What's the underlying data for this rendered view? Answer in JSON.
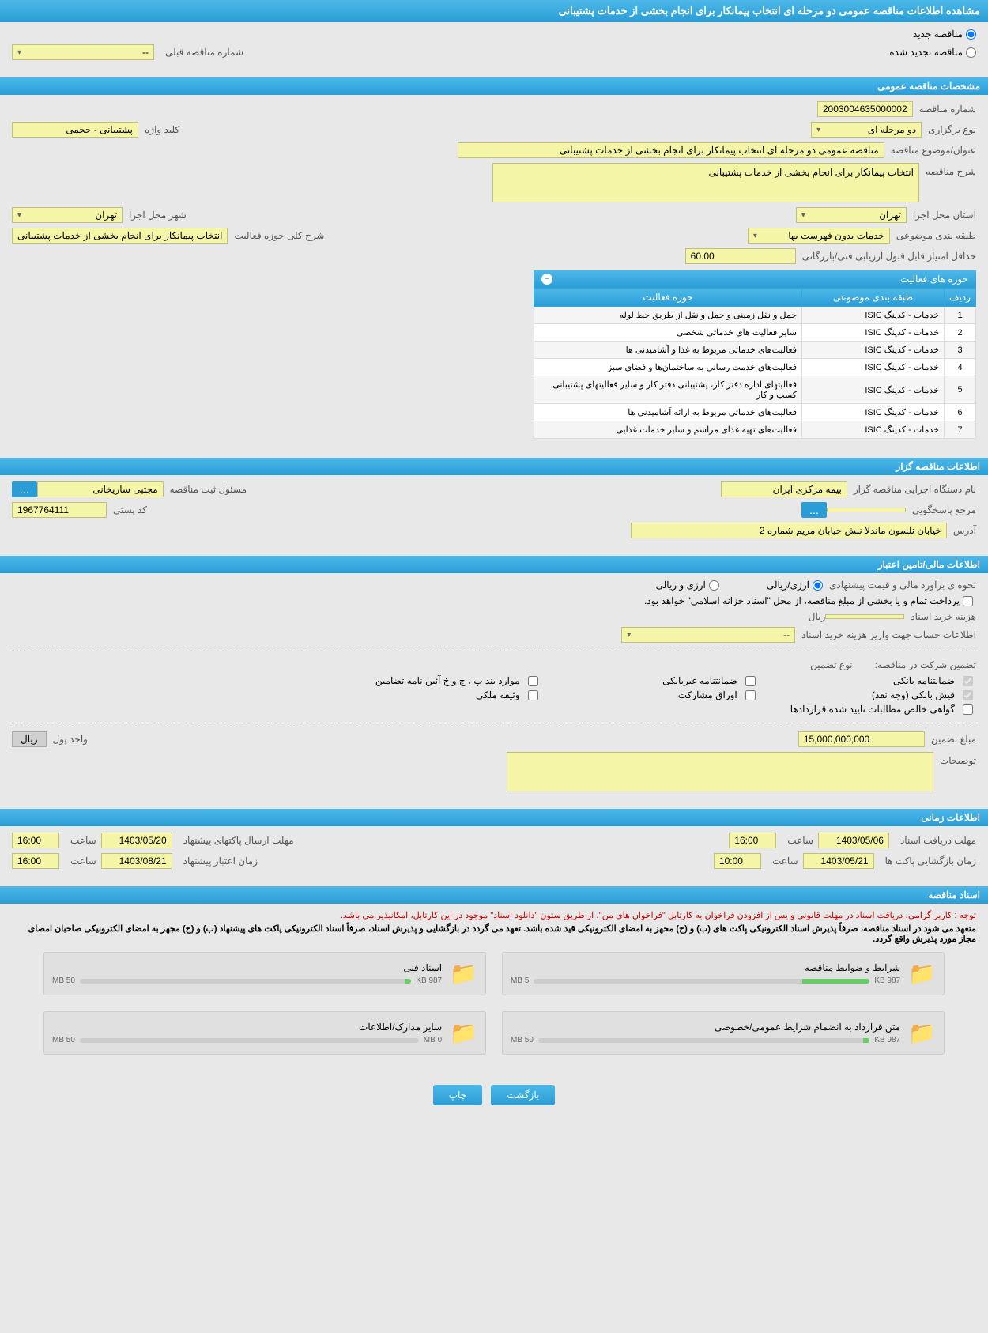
{
  "main_title": "مشاهده اطلاعات مناقصه عمومی دو مرحله ای انتخاب پیمانکار برای انجام بخشی از خدمات پشتیبانی",
  "top_radio": {
    "new_label": "مناقصه جدید",
    "renewed_label": "مناقصه تجدید شده",
    "prev_number_label": "شماره مناقصه قبلی",
    "prev_number_value": "--"
  },
  "sections": {
    "general": "مشخصات مناقصه عمومی",
    "organizer": "اطلاعات مناقصه گزار",
    "financial": "اطلاعات مالی/تامین اعتبار",
    "timing": "اطلاعات زمانی",
    "docs": "اسناد مناقصه"
  },
  "general": {
    "number_label": "شماره مناقصه",
    "number_value": "2003004635000002",
    "type_label": "نوع برگزاری",
    "type_value": "دو مرحله ای",
    "keyword_label": "کلید واژه",
    "keyword_value": "پشتیبانی - حجمی",
    "subject_label": "عنوان/موضوع مناقصه",
    "subject_value": "مناقصه عمومی دو مرحله ای انتخاب پیمانکار  برای   انجام بخشی از خدمات پشتیبانی",
    "desc_label": "شرح مناقصه",
    "desc_value": "انتخاب پیمانکار  برای   انجام بخشی از خدمات پشتیبانی",
    "province_label": "استان محل اجرا",
    "province_value": "تهران",
    "city_label": "شهر محل اجرا",
    "city_value": "تهران",
    "category_label": "طبقه بندی موضوعی",
    "category_value": "خدمات بدون فهرست بها",
    "scope_label": "شرح کلی حوزه فعالیت",
    "scope_value": "انتخاب پیمانکار  برای   انجام بخشی از خدمات پشتیبانی",
    "min_score_label": "حداقل امتیاز قابل قبول ارزیابی فنی/بازرگانی",
    "min_score_value": "60.00"
  },
  "activity_table": {
    "title": "حوزه های فعالیت",
    "col_row": "ردیف",
    "col_category": "طبقه بندی موضوعی",
    "col_activity": "حوزه فعالیت",
    "rows": [
      {
        "n": "1",
        "cat": "خدمات - کدینگ ISIC",
        "act": "حمل و نقل زمینی و حمل و نقل از طریق خط  لوله"
      },
      {
        "n": "2",
        "cat": "خدمات - کدینگ ISIC",
        "act": "سایر فعالیت های خدماتی شخصی"
      },
      {
        "n": "3",
        "cat": "خدمات - کدینگ ISIC",
        "act": "فعالیت‌های خدماتی مربوط به غذا و آشامیدنی ها"
      },
      {
        "n": "4",
        "cat": "خدمات - کدینگ ISIC",
        "act": "فعالیت‌های خدمت رسانی به ساختمان‌ها و فضای سبز"
      },
      {
        "n": "5",
        "cat": "خدمات - کدینگ ISIC",
        "act": "فعالیتهای  اداره دفتر کار، پشتیبانی دفتر کار و سایر فعالیتهای پشتیبانی کسب و کار"
      },
      {
        "n": "6",
        "cat": "خدمات - کدینگ ISIC",
        "act": "فعالیت‌های خدماتی مربوط به ارائه آشامیدنی ها"
      },
      {
        "n": "7",
        "cat": "خدمات - کدینگ ISIC",
        "act": "فعالیت‌های تهیه غذای مراسم و سایر خدمات غذایی"
      }
    ]
  },
  "organizer": {
    "agency_label": "نام دستگاه اجرایی مناقصه گزار",
    "agency_value": "بیمه مرکزی ایران",
    "responsible_label": "مسئول ثبت مناقصه",
    "responsible_value": "مجتبی ساریخانی",
    "answerer_label": "مرجع پاسخگویی",
    "answerer_value": "",
    "postal_label": "کد پستی",
    "postal_value": "1967764111",
    "address_label": "آدرس",
    "address_value": "خیابان نلسون ماندلا نبش خیابان مریم شماره 2"
  },
  "financial": {
    "method_label": "نحوه ی برآورد مالی و قیمت پیشنهادی",
    "rial_label": "ارزی/ریالی",
    "currency_label": "ارزی و ریالی",
    "payment_note": "پرداخت تمام و یا بخشی از مبلغ مناقصه، از محل \"اسناد خزانه اسلامی\" خواهد بود.",
    "purchase_cost_label": "هزینه خرید اسناد",
    "purchase_cost_unit": "ریال",
    "account_label": "اطلاعات حساب جهت واریز هزینه خرید اسناد",
    "account_value": "--",
    "guarantee_title": "تضمین شرکت در مناقصه:",
    "guarantee_type_label": "نوع تضمین",
    "gt_bank": "ضمانتنامه بانکی",
    "gt_nonbank": "ضمانتنامه غیربانکی",
    "gt_items": "موارد بند پ ، ج و خ آئین نامه تضامین",
    "gt_cash": "فیش بانکی (وجه نقد)",
    "gt_securities": "اوراق مشارکت",
    "gt_property": "وثیقه ملکی",
    "gt_receivables": "گواهی خالص مطالبات تایید شده قراردادها",
    "amount_label": "مبلغ تضمین",
    "amount_value": "15,000,000,000",
    "unit_label": "واحد پول",
    "unit_value": "ریال",
    "notes_label": "توضیحات"
  },
  "timing": {
    "receive_label": "مهلت دریافت اسناد",
    "receive_date": "1403/05/06",
    "time_label": "ساعت",
    "receive_time": "16:00",
    "send_label": "مهلت ارسال پاکتهای پیشنهاد",
    "send_date": "1403/05/20",
    "send_time": "16:00",
    "open_label": "زمان بازگشایی پاکت ها",
    "open_date": "1403/05/21",
    "open_time": "10:00",
    "validity_label": "زمان اعتبار پیشنهاد",
    "validity_date": "1403/08/21",
    "validity_time": "16:00"
  },
  "docs": {
    "red_note": "توجه : کاربر گرامی، دریافت اسناد در مهلت قانونی و پس از افزودن فراخوان به کارتابل \"فراخوان های من\"، از طریق ستون \"دانلود اسناد\" موجود در این کارتابل، امکانپذیر می باشد.",
    "black_note": "متعهد می شود در اسناد مناقصه، صرفاً پذیرش اسناد الکترونیکی پاکت های (ب) و (ج) مجهز به امضای الکترونیکی قید شده باشد. تعهد می گردد در بازگشایی و پذیرش اسناد، صرفاً اسناد الکترونیکی پاکت های پیشنهاد (ب) و (ج) مجهز به امضای الکترونیکی صاحبان امضای مجاز مورد پذیرش واقع گردد.",
    "d1_title": "شرایط و ضوابط مناقصه",
    "d1_size": "987 KB",
    "d1_max": "5 MB",
    "d2_title": "اسناد فنی",
    "d2_size": "987 KB",
    "d2_max": "50 MB",
    "d3_title": "متن قرارداد به انضمام شرایط عمومی/خصوصی",
    "d3_size": "987 KB",
    "d3_max": "50 MB",
    "d4_title": "سایر مدارک/اطلاعات",
    "d4_size": "0 MB",
    "d4_max": "50 MB"
  },
  "footer": {
    "back": "بازگشت",
    "print": "چاپ"
  }
}
